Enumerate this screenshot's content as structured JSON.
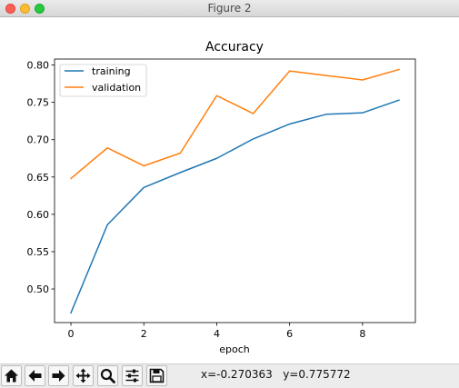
{
  "window": {
    "title": "Figure 2"
  },
  "toolbar": {
    "buttons": [
      {
        "name": "home-icon"
      },
      {
        "name": "back-arrow-icon"
      },
      {
        "name": "forward-arrow-icon"
      },
      {
        "name": "pan-icon"
      },
      {
        "name": "zoom-icon"
      },
      {
        "name": "configure-subplots-icon"
      },
      {
        "name": "save-icon"
      }
    ],
    "coord_x": "x=-0.270363",
    "coord_y": "y=0.775772"
  },
  "chart_data": {
    "type": "line",
    "title": "Accuracy",
    "xlabel": "epoch",
    "ylabel": "",
    "xlim": [
      -0.45,
      9.45
    ],
    "ylim": [
      0.455,
      0.808
    ],
    "xticks": [
      0,
      2,
      4,
      6,
      8
    ],
    "yticks": [
      0.5,
      0.55,
      0.6,
      0.65,
      0.7,
      0.75,
      0.8
    ],
    "grid": false,
    "legend_position": "upper-left",
    "x": [
      0,
      1,
      2,
      3,
      4,
      5,
      6,
      7,
      8,
      9
    ],
    "series": [
      {
        "name": "training",
        "color": "#1f77b4",
        "values": [
          0.468,
          0.586,
          0.636,
          0.656,
          0.675,
          0.701,
          0.721,
          0.734,
          0.736,
          0.753
        ]
      },
      {
        "name": "validation",
        "color": "#ff7f0e",
        "values": [
          0.648,
          0.689,
          0.665,
          0.682,
          0.759,
          0.735,
          0.792,
          0.786,
          0.78,
          0.794
        ]
      }
    ]
  }
}
